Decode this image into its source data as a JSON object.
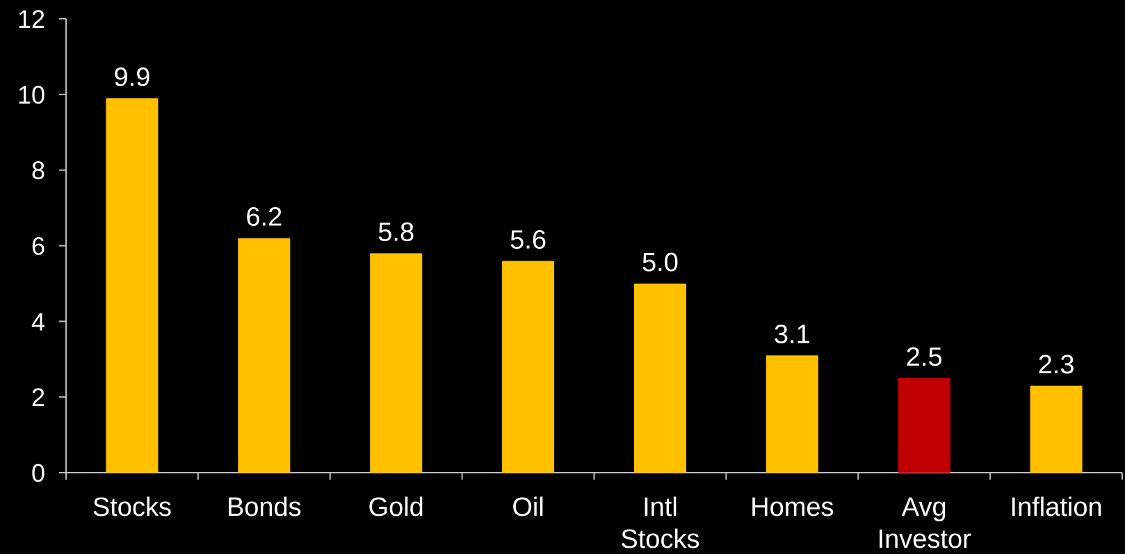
{
  "chart_data": {
    "type": "bar",
    "categories": [
      [
        "Stocks"
      ],
      [
        "Bonds"
      ],
      [
        "Gold"
      ],
      [
        "Oil"
      ],
      [
        "Intl",
        "Stocks"
      ],
      [
        "Homes"
      ],
      [
        "Avg",
        "Investor"
      ],
      [
        "Inflation"
      ]
    ],
    "values": [
      9.9,
      6.2,
      5.8,
      5.6,
      5.0,
      3.1,
      2.5,
      2.3
    ],
    "data_labels": [
      "9.9",
      "6.2",
      "5.8",
      "5.6",
      "5.0",
      "3.1",
      "2.5",
      "2.3"
    ],
    "bar_colors": [
      "#FFC000",
      "#FFC000",
      "#FFC000",
      "#FFC000",
      "#FFC000",
      "#FFC000",
      "#C00000",
      "#FFC000"
    ],
    "ylim": [
      0,
      12
    ],
    "yticks": [
      0,
      2,
      4,
      6,
      8,
      10,
      12
    ],
    "title": "",
    "xlabel": "",
    "ylabel": "",
    "grid": false,
    "background": "#000000",
    "text_color": "#FFFFFF",
    "axis_color": "#BFBFBF"
  }
}
